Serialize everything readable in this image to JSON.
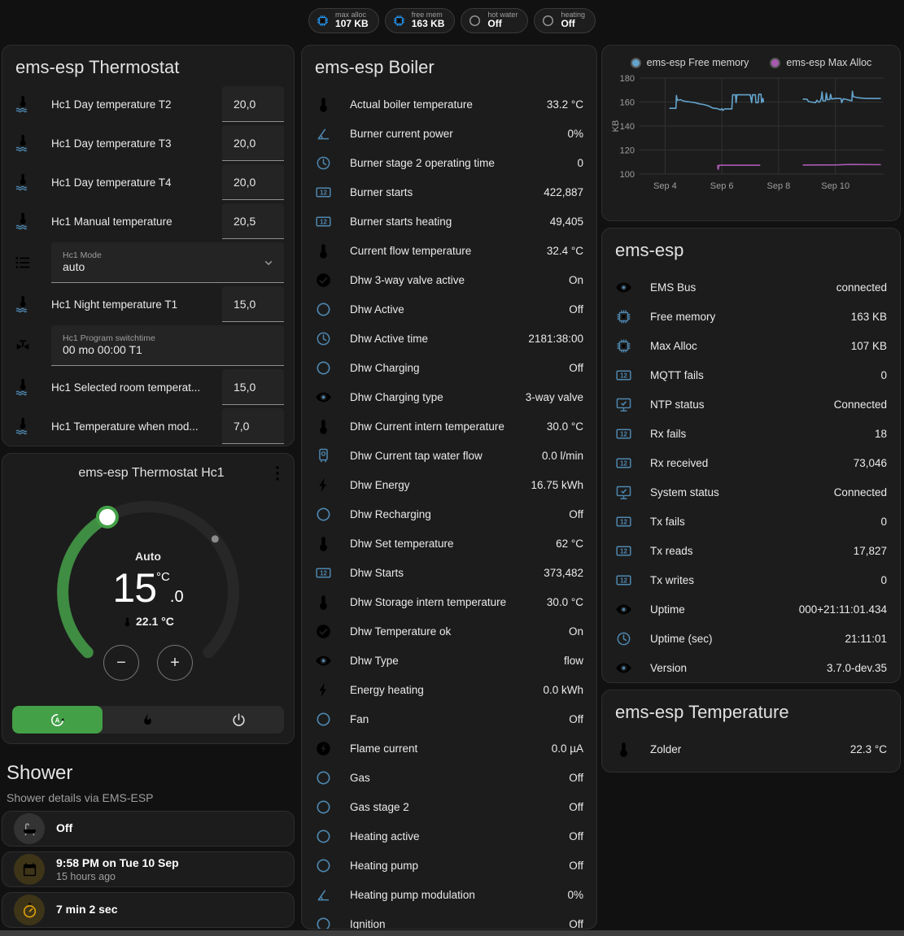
{
  "colors": {
    "background": "#111111",
    "card": "#1c1c1c",
    "icon_blue": "#4e87b0",
    "chip_icon_blue": "#2196f3",
    "amber": "#e0a40c",
    "green": "#43a047",
    "free_memory_line": "#64a3cc",
    "max_alloc_line": "#a85ab0",
    "gray_icon": "#9e9e9e"
  },
  "topbar": {
    "chips": [
      {
        "icon": "memory-chip",
        "icon_color": "#2196f3",
        "label": "max alloc",
        "value": "107 KB"
      },
      {
        "icon": "memory-chip",
        "icon_color": "#2196f3",
        "label": "free mem",
        "value": "163 KB"
      },
      {
        "icon": "circle-outline",
        "icon_color": "#9e9e9e",
        "label": "hot water",
        "value": "Off"
      },
      {
        "icon": "circle-outline",
        "icon_color": "#9e9e9e",
        "label": "heating",
        "value": "Off"
      }
    ]
  },
  "thermostat_card": {
    "title": "ems-esp Thermostat",
    "rows": [
      {
        "type": "number",
        "icon": "thermometer-water",
        "label": "Hc1 Day temperature T2",
        "value": "20,0"
      },
      {
        "type": "number",
        "icon": "thermometer-water",
        "label": "Hc1 Day temperature T3",
        "value": "20,0"
      },
      {
        "type": "number",
        "icon": "thermometer-water",
        "label": "Hc1 Day temperature T4",
        "value": "20,0"
      },
      {
        "type": "number",
        "icon": "thermometer-water",
        "label": "Hc1 Manual temperature",
        "value": "20,5"
      },
      {
        "type": "select",
        "icon": "format-list",
        "label": "Hc1 Mode",
        "value": "auto"
      },
      {
        "type": "number",
        "icon": "thermometer-water",
        "label": "Hc1 Night temperature T1",
        "value": "15,0"
      },
      {
        "type": "text",
        "icon": "pipe-valve",
        "label": "Hc1 Program switchtime",
        "value": "00 mo 00:00 T1"
      },
      {
        "type": "number",
        "icon": "thermometer-water",
        "label": "Hc1 Selected room temperat...",
        "value": "15,0"
      },
      {
        "type": "number",
        "icon": "thermometer-water",
        "label": "Hc1 Temperature when mod...",
        "value": "7,0"
      }
    ]
  },
  "dial_card": {
    "title": "ems-esp Thermostat Hc1",
    "mode_label": "Auto",
    "target_int": "15",
    "target_dec": ".0",
    "unit": "°C",
    "current_temp": "22.1 °C",
    "minus_label": "−",
    "plus_label": "+",
    "modes": [
      {
        "icon": "auto-mode",
        "active": true
      },
      {
        "icon": "flame",
        "active": false
      },
      {
        "icon": "power",
        "active": false
      }
    ]
  },
  "shower": {
    "title": "Shower",
    "subtitle": "Shower details via EMS-ESP",
    "cards": [
      {
        "icon": "bathtub",
        "tint": "gray",
        "primary": "Off",
        "secondary": ""
      },
      {
        "icon": "calendar",
        "tint": "amber",
        "primary": "9:58 PM on Tue 10 Sep",
        "secondary": "15 hours ago"
      },
      {
        "icon": "timer",
        "tint": "amber",
        "primary": "7 min 2 sec",
        "secondary": ""
      }
    ],
    "frost_icon_text": "❄!"
  },
  "boiler_card": {
    "title": "ems-esp Boiler",
    "rows": [
      {
        "icon": "thermometer",
        "label": "Actual boiler temperature",
        "value": "33.2 °C"
      },
      {
        "icon": "angle-acute",
        "label": "Burner current power",
        "value": "0%"
      },
      {
        "icon": "clock",
        "label": "Burner stage 2 operating time",
        "value": "0"
      },
      {
        "icon": "counter",
        "label": "Burner starts",
        "value": "422,887"
      },
      {
        "icon": "counter",
        "label": "Burner starts heating",
        "value": "49,405"
      },
      {
        "icon": "thermometer",
        "label": "Current flow temperature",
        "value": "32.4 °C"
      },
      {
        "icon": "check-circle",
        "label": "Dhw 3-way valve active",
        "value": "On"
      },
      {
        "icon": "circle-outline",
        "label": "Dhw Active",
        "value": "Off"
      },
      {
        "icon": "clock",
        "label": "Dhw Active time",
        "value": "2181:38:00"
      },
      {
        "icon": "circle-outline",
        "label": "Dhw Charging",
        "value": "Off"
      },
      {
        "icon": "eye",
        "label": "Dhw Charging type",
        "value": "3-way valve"
      },
      {
        "icon": "thermometer",
        "label": "Dhw Current intern temperature",
        "value": "30.0 °C"
      },
      {
        "icon": "water-boiler",
        "label": "Dhw Current tap water flow",
        "value": "0.0 l/min"
      },
      {
        "icon": "lightning-bolt",
        "label": "Dhw Energy",
        "value": "16.75 kWh"
      },
      {
        "icon": "circle-outline",
        "label": "Dhw Recharging",
        "value": "Off"
      },
      {
        "icon": "thermometer",
        "label": "Dhw Set temperature",
        "value": "62 °C"
      },
      {
        "icon": "counter",
        "label": "Dhw Starts",
        "value": "373,482"
      },
      {
        "icon": "thermometer",
        "label": "Dhw Storage intern temperature",
        "value": "30.0 °C"
      },
      {
        "icon": "check-circle",
        "label": "Dhw Temperature ok",
        "value": "On"
      },
      {
        "icon": "eye",
        "label": "Dhw Type",
        "value": "flow"
      },
      {
        "icon": "lightning-bolt",
        "label": "Energy heating",
        "value": "0.0 kWh"
      },
      {
        "icon": "circle-outline",
        "label": "Fan",
        "value": "Off"
      },
      {
        "icon": "flash-circle",
        "label": "Flame current",
        "value": "0.0 µA"
      },
      {
        "icon": "circle-outline",
        "label": "Gas",
        "value": "Off"
      },
      {
        "icon": "circle-outline",
        "label": "Gas stage 2",
        "value": "Off"
      },
      {
        "icon": "circle-outline",
        "label": "Heating active",
        "value": "Off"
      },
      {
        "icon": "circle-outline",
        "label": "Heating pump",
        "value": "Off"
      },
      {
        "icon": "angle-acute",
        "label": "Heating pump modulation",
        "value": "0%"
      },
      {
        "icon": "circle-outline",
        "label": "Ignition",
        "value": "Off"
      }
    ]
  },
  "chart_data": {
    "type": "line",
    "title": "",
    "xlabel": "",
    "ylabel": "KB",
    "ylim": [
      100,
      180
    ],
    "yticks": [
      100,
      120,
      140,
      160,
      180
    ],
    "xlim": [
      3.1,
      11.7
    ],
    "xticks": [
      {
        "x": 4,
        "label": "Sep 4"
      },
      {
        "x": 6,
        "label": "Sep 6"
      },
      {
        "x": 8,
        "label": "Sep 8"
      },
      {
        "x": 10,
        "label": "Sep 10"
      }
    ],
    "grid": true,
    "legend_position": "top",
    "series": [
      {
        "name": "ems-esp Free memory",
        "color": "#64a3cc",
        "segments": [
          [
            [
              4.15,
              154.8
            ],
            [
              4.38,
              154.8
            ],
            [
              4.4,
              165.5
            ],
            [
              4.43,
              161.5
            ],
            [
              4.55,
              162
            ],
            [
              4.62,
              161
            ],
            [
              4.75,
              160.5
            ],
            [
              4.9,
              160
            ],
            [
              5.05,
              159.5
            ],
            [
              5.2,
              158.5
            ],
            [
              5.35,
              158
            ],
            [
              5.5,
              157
            ],
            [
              5.6,
              156
            ],
            [
              5.68,
              155
            ],
            [
              5.75,
              154.8
            ],
            [
              5.85,
              154.5
            ],
            [
              5.95,
              153.5
            ],
            [
              6.0,
              154.5
            ],
            [
              6.03,
              153
            ],
            [
              6.1,
              154.3
            ],
            [
              6.35,
              154.3
            ],
            [
              6.38,
              166
            ],
            [
              6.48,
              166
            ],
            [
              6.5,
              159.5
            ],
            [
              6.53,
              166
            ],
            [
              7.0,
              166
            ],
            [
              7.05,
              159.5
            ],
            [
              7.08,
              166
            ],
            [
              7.18,
              166
            ],
            [
              7.2,
              159.5
            ],
            [
              7.28,
              159.5
            ],
            [
              7.3,
              166.5
            ],
            [
              7.38,
              166.5
            ],
            [
              7.4,
              159.5
            ],
            [
              7.45,
              163
            ],
            [
              7.47,
              159.8
            ]
          ],
          [
            [
              8.85,
              162.5
            ],
            [
              9.0,
              162.3
            ],
            [
              9.05,
              160.5
            ],
            [
              9.15,
              160
            ],
            [
              9.3,
              159.5
            ],
            [
              9.35,
              161.5
            ],
            [
              9.4,
              160
            ],
            [
              9.45,
              160
            ],
            [
              9.5,
              163
            ],
            [
              9.53,
              168.5
            ],
            [
              9.56,
              161
            ],
            [
              9.65,
              161
            ],
            [
              9.68,
              167.5
            ],
            [
              9.72,
              162
            ],
            [
              9.8,
              162
            ],
            [
              9.83,
              166.5
            ],
            [
              9.87,
              162.5
            ],
            [
              10.0,
              163
            ],
            [
              10.15,
              163
            ],
            [
              10.2,
              162.8
            ],
            [
              10.22,
              159.5
            ],
            [
              10.28,
              162.8
            ],
            [
              10.5,
              161.5
            ],
            [
              10.58,
              161
            ],
            [
              10.6,
              169
            ],
            [
              10.63,
              164.5
            ],
            [
              10.75,
              163.8
            ],
            [
              10.9,
              163.3
            ],
            [
              11.1,
              163
            ],
            [
              11.4,
              163
            ],
            [
              11.6,
              163
            ]
          ]
        ]
      },
      {
        "name": "ems-esp Max Alloc",
        "color": "#a85ab0",
        "segments": [
          [
            [
              5.85,
              107.5
            ],
            [
              5.87,
              103.8
            ],
            [
              5.9,
              107.3
            ],
            [
              7.35,
              107.3
            ]
          ],
          [
            [
              8.85,
              107.5
            ],
            [
              10.0,
              107.6
            ],
            [
              10.5,
              108
            ],
            [
              11.6,
              107.8
            ]
          ]
        ]
      }
    ]
  },
  "esp_card": {
    "title": "ems-esp",
    "rows": [
      {
        "icon": "eye",
        "label": "EMS Bus",
        "value": "connected"
      },
      {
        "icon": "memory-chip",
        "label": "Free memory",
        "value": "163 KB"
      },
      {
        "icon": "memory-chip",
        "label": "Max Alloc",
        "value": "107 KB"
      },
      {
        "icon": "counter",
        "label": "MQTT fails",
        "value": "0"
      },
      {
        "icon": "monitor-check",
        "label": "NTP status",
        "value": "Connected"
      },
      {
        "icon": "counter",
        "label": "Rx fails",
        "value": "18"
      },
      {
        "icon": "counter",
        "label": "Rx received",
        "value": "73,046"
      },
      {
        "icon": "monitor-check",
        "label": "System status",
        "value": "Connected"
      },
      {
        "icon": "counter",
        "label": "Tx fails",
        "value": "0"
      },
      {
        "icon": "counter",
        "label": "Tx reads",
        "value": "17,827"
      },
      {
        "icon": "counter",
        "label": "Tx writes",
        "value": "0"
      },
      {
        "icon": "eye",
        "label": "Uptime",
        "value": "000+21:11:01.434"
      },
      {
        "icon": "clock",
        "label": "Uptime (sec)",
        "value": "21:11:01"
      },
      {
        "icon": "eye",
        "label": "Version",
        "value": "3.7.0-dev.35"
      }
    ]
  },
  "temp_card": {
    "title": "ems-esp Temperature",
    "rows": [
      {
        "icon": "thermometer",
        "label": "Zolder",
        "value": "22.3 °C"
      }
    ]
  }
}
